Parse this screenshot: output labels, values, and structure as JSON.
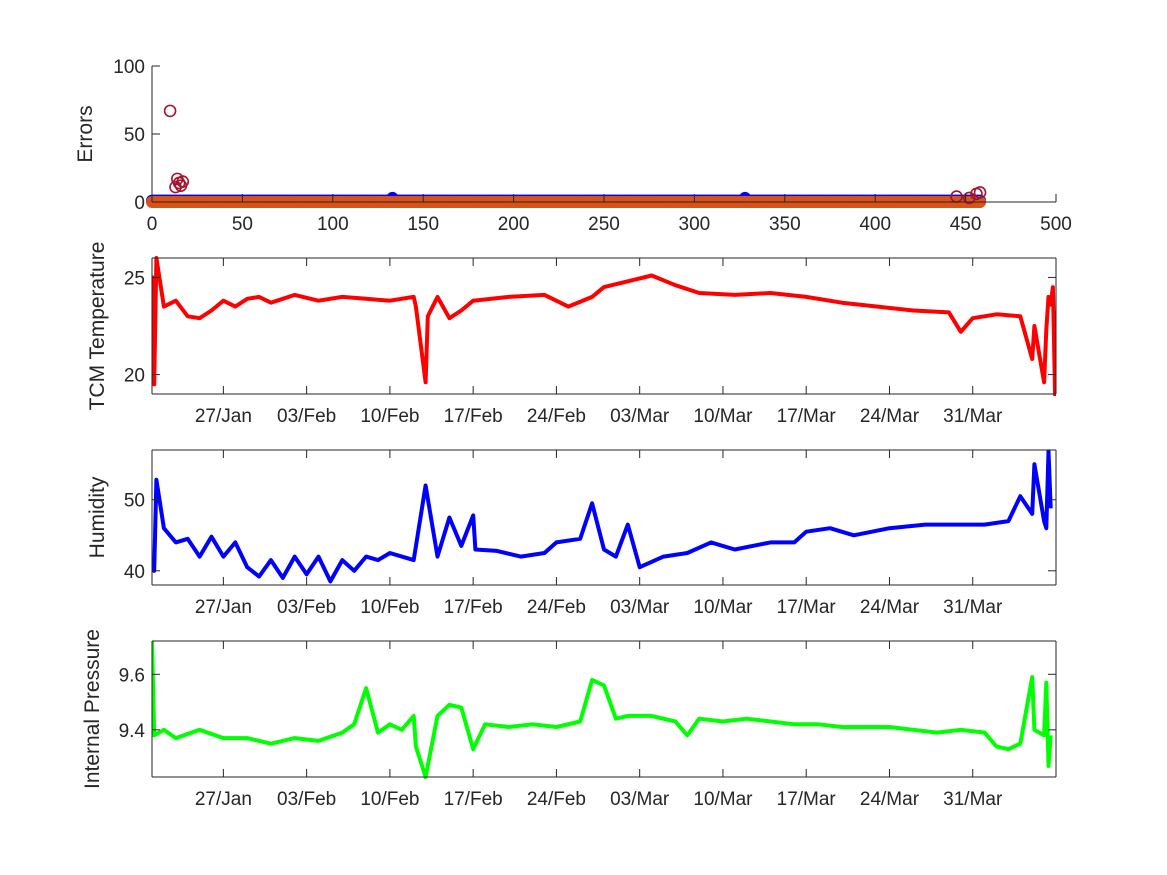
{
  "chart_data": [
    {
      "type": "scatter",
      "ylabel": "Errors",
      "xlim": [
        0,
        500
      ],
      "ylim": [
        0,
        100
      ],
      "xticks": [
        0,
        50,
        100,
        150,
        200,
        250,
        300,
        350,
        400,
        450,
        500
      ],
      "yticks": [
        0,
        50,
        100
      ],
      "series": [
        {
          "color": "#0000FF",
          "marker": "circle-filled",
          "description": "dense band near 1",
          "x_range": [
            0,
            458
          ],
          "y": 1,
          "outliers": [
            [
              133,
              3
            ],
            [
              328,
              3
            ]
          ]
        },
        {
          "color": "#A2142F",
          "marker": "circle-open",
          "points": [
            [
              10,
              67
            ],
            [
              13,
              11
            ],
            [
              14,
              17
            ],
            [
              15,
              14
            ],
            [
              16,
              12
            ],
            [
              17,
              15
            ],
            [
              445,
              4
            ],
            [
              452,
              3
            ],
            [
              456,
              6
            ],
            [
              458,
              7
            ]
          ]
        },
        {
          "color": "#D95319",
          "marker": "circle-filled",
          "description": "dense band at 0",
          "x_range": [
            0,
            458
          ],
          "y": 0
        }
      ]
    },
    {
      "type": "line",
      "ylabel": "TCM Temperature",
      "color": "#FF0000",
      "ylim": [
        19,
        26
      ],
      "yticks": [
        20,
        25
      ],
      "x_start": "2021-01-21",
      "x_end": "2021-04-06",
      "xticklabels": [
        "27/Jan",
        "03/Feb",
        "10/Feb",
        "17/Feb",
        "24/Feb",
        "03/Mar",
        "10/Mar",
        "17/Mar",
        "24/Mar",
        "31/Mar"
      ],
      "points": [
        [
          "2021-01-21",
          25.1
        ],
        [
          "2021-01-21",
          19.5
        ],
        [
          "2021-01-21",
          26.0
        ],
        [
          "2021-01-22",
          23.5
        ],
        [
          "2021-01-23",
          23.8
        ],
        [
          "2021-01-24",
          23.0
        ],
        [
          "2021-01-25",
          22.9
        ],
        [
          "2021-01-26",
          23.3
        ],
        [
          "2021-01-27",
          23.8
        ],
        [
          "2021-01-28",
          23.5
        ],
        [
          "2021-01-29",
          23.9
        ],
        [
          "2021-01-30",
          24.0
        ],
        [
          "2021-01-31",
          23.7
        ],
        [
          "2021-02-01",
          23.9
        ],
        [
          "2021-02-02",
          24.1
        ],
        [
          "2021-02-04",
          23.8
        ],
        [
          "2021-02-06",
          24.0
        ],
        [
          "2021-02-08",
          23.9
        ],
        [
          "2021-02-10",
          23.8
        ],
        [
          "2021-02-12",
          24.0
        ],
        [
          "2021-02-12",
          23.5
        ],
        [
          "2021-02-13",
          19.6
        ],
        [
          "2021-02-13",
          23.0
        ],
        [
          "2021-02-14",
          24.0
        ],
        [
          "2021-02-15",
          22.9
        ],
        [
          "2021-02-16",
          23.3
        ],
        [
          "2021-02-17",
          23.8
        ],
        [
          "2021-02-20",
          24.0
        ],
        [
          "2021-02-23",
          24.1
        ],
        [
          "2021-02-25",
          23.5
        ],
        [
          "2021-02-27",
          24.0
        ],
        [
          "2021-02-28",
          24.5
        ],
        [
          "2021-03-02",
          24.8
        ],
        [
          "2021-03-04",
          25.1
        ],
        [
          "2021-03-06",
          24.6
        ],
        [
          "2021-03-08",
          24.2
        ],
        [
          "2021-03-11",
          24.1
        ],
        [
          "2021-03-14",
          24.2
        ],
        [
          "2021-03-17",
          24.0
        ],
        [
          "2021-03-20",
          23.7
        ],
        [
          "2021-03-23",
          23.5
        ],
        [
          "2021-03-26",
          23.3
        ],
        [
          "2021-03-29",
          23.2
        ],
        [
          "2021-03-30",
          22.2
        ],
        [
          "2021-03-31",
          22.9
        ],
        [
          "2021-04-02",
          23.1
        ],
        [
          "2021-04-04",
          23.0
        ],
        [
          "2021-04-05",
          20.8
        ],
        [
          "2021-04-05",
          22.5
        ],
        [
          "2021-04-06",
          19.6
        ],
        [
          "2021-04-06",
          22.3
        ],
        [
          "2021-04-06",
          24.0
        ],
        [
          "2021-04-06",
          23.6
        ],
        [
          "2021-04-06",
          24.5
        ],
        [
          "2021-04-06",
          18.9
        ],
        [
          "2021-04-06",
          23.3
        ]
      ]
    },
    {
      "type": "line",
      "ylabel": "Humidity",
      "color": "#0000FF",
      "ylim": [
        38,
        57
      ],
      "yticks": [
        40,
        50
      ],
      "x_start": "2021-01-21",
      "x_end": "2021-04-06",
      "xticklabels": [
        "27/Jan",
        "03/Feb",
        "10/Feb",
        "17/Feb",
        "24/Feb",
        "03/Mar",
        "10/Mar",
        "17/Mar",
        "24/Mar",
        "31/Mar"
      ],
      "points": [
        [
          "2021-01-21",
          41.5
        ],
        [
          "2021-01-21",
          40.0
        ],
        [
          "2021-01-21",
          52.8
        ],
        [
          "2021-01-22",
          46.0
        ],
        [
          "2021-01-23",
          44.0
        ],
        [
          "2021-01-24",
          44.5
        ],
        [
          "2021-01-25",
          42.0
        ],
        [
          "2021-01-26",
          44.8
        ],
        [
          "2021-01-27",
          42.0
        ],
        [
          "2021-01-28",
          44.0
        ],
        [
          "2021-01-29",
          40.5
        ],
        [
          "2021-01-30",
          39.2
        ],
        [
          "2021-01-31",
          41.5
        ],
        [
          "2021-02-01",
          39.0
        ],
        [
          "2021-02-02",
          42.0
        ],
        [
          "2021-02-03",
          39.5
        ],
        [
          "2021-02-04",
          42.0
        ],
        [
          "2021-02-05",
          38.5
        ],
        [
          "2021-02-06",
          41.5
        ],
        [
          "2021-02-07",
          40.0
        ],
        [
          "2021-02-08",
          42.0
        ],
        [
          "2021-02-09",
          41.5
        ],
        [
          "2021-02-10",
          42.5
        ],
        [
          "2021-02-11",
          42.0
        ],
        [
          "2021-02-12",
          41.5
        ],
        [
          "2021-02-13",
          52.0
        ],
        [
          "2021-02-14",
          42.0
        ],
        [
          "2021-02-15",
          47.5
        ],
        [
          "2021-02-16",
          43.5
        ],
        [
          "2021-02-17",
          47.8
        ],
        [
          "2021-02-17",
          43.0
        ],
        [
          "2021-02-19",
          42.8
        ],
        [
          "2021-02-21",
          42.0
        ],
        [
          "2021-02-23",
          42.5
        ],
        [
          "2021-02-24",
          44.0
        ],
        [
          "2021-02-26",
          44.5
        ],
        [
          "2021-02-27",
          49.5
        ],
        [
          "2021-02-28",
          43.0
        ],
        [
          "2021-03-01",
          42.0
        ],
        [
          "2021-03-02",
          46.5
        ],
        [
          "2021-03-03",
          40.5
        ],
        [
          "2021-03-05",
          42.0
        ],
        [
          "2021-03-07",
          42.5
        ],
        [
          "2021-03-09",
          44.0
        ],
        [
          "2021-03-11",
          43.0
        ],
        [
          "2021-03-14",
          44.0
        ],
        [
          "2021-03-16",
          44.0
        ],
        [
          "2021-03-17",
          45.5
        ],
        [
          "2021-03-19",
          46.0
        ],
        [
          "2021-03-21",
          45.0
        ],
        [
          "2021-03-24",
          46.0
        ],
        [
          "2021-03-27",
          46.5
        ],
        [
          "2021-03-30",
          46.5
        ],
        [
          "2021-04-01",
          46.5
        ],
        [
          "2021-04-03",
          47.0
        ],
        [
          "2021-04-04",
          50.5
        ],
        [
          "2021-04-05",
          48.0
        ],
        [
          "2021-04-05",
          55.0
        ],
        [
          "2021-04-06",
          47.0
        ],
        [
          "2021-04-06",
          46.0
        ],
        [
          "2021-04-06",
          56.8
        ],
        [
          "2021-04-06",
          48.8
        ]
      ]
    },
    {
      "type": "line",
      "ylabel": "Internal Pressure",
      "color": "#00FF00",
      "ylim": [
        9.23,
        9.72
      ],
      "yticks": [
        9.4,
        9.6
      ],
      "x_start": "2021-01-21",
      "x_end": "2021-04-06",
      "xticklabels": [
        "27/Jan",
        "03/Feb",
        "10/Feb",
        "17/Feb",
        "24/Feb",
        "03/Mar",
        "10/Mar",
        "17/Mar",
        "24/Mar",
        "31/Mar"
      ],
      "points": [
        [
          "2021-01-21",
          9.72
        ],
        [
          "2021-01-21",
          9.38
        ],
        [
          "2021-01-22",
          9.4
        ],
        [
          "2021-01-23",
          9.37
        ],
        [
          "2021-01-25",
          9.4
        ],
        [
          "2021-01-27",
          9.37
        ],
        [
          "2021-01-29",
          9.37
        ],
        [
          "2021-01-31",
          9.35
        ],
        [
          "2021-02-02",
          9.37
        ],
        [
          "2021-02-04",
          9.36
        ],
        [
          "2021-02-06",
          9.39
        ],
        [
          "2021-02-07",
          9.42
        ],
        [
          "2021-02-08",
          9.55
        ],
        [
          "2021-02-09",
          9.39
        ],
        [
          "2021-02-10",
          9.42
        ],
        [
          "2021-02-11",
          9.4
        ],
        [
          "2021-02-12",
          9.45
        ],
        [
          "2021-02-12",
          9.34
        ],
        [
          "2021-02-13",
          9.23
        ],
        [
          "2021-02-14",
          9.45
        ],
        [
          "2021-02-15",
          9.49
        ],
        [
          "2021-02-16",
          9.48
        ],
        [
          "2021-02-17",
          9.33
        ],
        [
          "2021-02-18",
          9.42
        ],
        [
          "2021-02-20",
          9.41
        ],
        [
          "2021-02-22",
          9.42
        ],
        [
          "2021-02-24",
          9.41
        ],
        [
          "2021-02-26",
          9.43
        ],
        [
          "2021-02-27",
          9.58
        ],
        [
          "2021-02-28",
          9.56
        ],
        [
          "2021-03-01",
          9.44
        ],
        [
          "2021-03-02",
          9.45
        ],
        [
          "2021-03-04",
          9.45
        ],
        [
          "2021-03-06",
          9.43
        ],
        [
          "2021-03-07",
          9.38
        ],
        [
          "2021-03-08",
          9.44
        ],
        [
          "2021-03-10",
          9.43
        ],
        [
          "2021-03-12",
          9.44
        ],
        [
          "2021-03-14",
          9.43
        ],
        [
          "2021-03-16",
          9.42
        ],
        [
          "2021-03-18",
          9.42
        ],
        [
          "2021-03-20",
          9.41
        ],
        [
          "2021-03-22",
          9.41
        ],
        [
          "2021-03-24",
          9.41
        ],
        [
          "2021-03-26",
          9.4
        ],
        [
          "2021-03-28",
          9.39
        ],
        [
          "2021-03-30",
          9.4
        ],
        [
          "2021-04-01",
          9.39
        ],
        [
          "2021-04-02",
          9.34
        ],
        [
          "2021-04-03",
          9.33
        ],
        [
          "2021-04-04",
          9.35
        ],
        [
          "2021-04-05",
          9.59
        ],
        [
          "2021-04-05",
          9.4
        ],
        [
          "2021-04-06",
          9.38
        ],
        [
          "2021-04-06",
          9.57
        ],
        [
          "2021-04-06",
          9.27
        ],
        [
          "2021-04-06",
          9.38
        ]
      ]
    }
  ]
}
